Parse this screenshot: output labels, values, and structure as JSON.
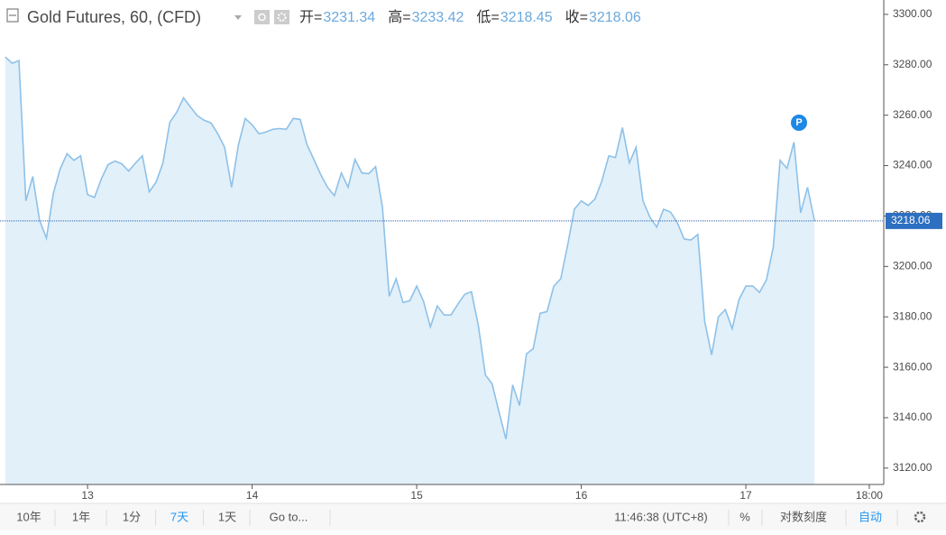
{
  "chart_data": {
    "type": "line",
    "title": "Gold Futures, 60, (CFD)",
    "legend_values": [
      {
        "label": "开=",
        "value": 3231.34
      },
      {
        "label": "高=",
        "value": 3233.42
      },
      {
        "label": "低=",
        "value": 3218.45
      },
      {
        "label": "收=",
        "value": 3218.06
      }
    ],
    "last_price_label": 3218.06,
    "color": "#8ec1e8",
    "fill": "#e2f0fa",
    "x": [
      12.5,
      12.542,
      12.583,
      12.625,
      12.667,
      12.708,
      12.75,
      12.792,
      12.833,
      12.875,
      12.917,
      12.958,
      13,
      13.042,
      13.083,
      13.125,
      13.167,
      13.208,
      13.25,
      13.292,
      13.333,
      13.375,
      13.417,
      13.458,
      13.5,
      13.542,
      13.583,
      13.625,
      13.667,
      13.708,
      13.75,
      13.792,
      13.833,
      13.875,
      13.917,
      13.958,
      14,
      14.042,
      14.083,
      14.125,
      14.167,
      14.208,
      14.25,
      14.292,
      14.333,
      14.375,
      14.417,
      14.458,
      14.5,
      14.542,
      14.583,
      14.625,
      14.667,
      14.708,
      14.75,
      14.792,
      14.833,
      14.875,
      14.917,
      14.958,
      15,
      15.042,
      15.083,
      15.125,
      15.167,
      15.208,
      15.25,
      15.292,
      15.333,
      15.375,
      15.417,
      15.458,
      15.5,
      15.542,
      15.583,
      15.625,
      15.667,
      15.708,
      15.75,
      15.792,
      15.833,
      15.875,
      15.917,
      15.958,
      16,
      16.042,
      16.083,
      16.125,
      16.167,
      16.208,
      16.25,
      16.292,
      16.333,
      16.375,
      16.417,
      16.458,
      16.5,
      16.542,
      16.583,
      16.625,
      16.667,
      16.708,
      16.75,
      16.792,
      16.833,
      16.875,
      16.917,
      16.958,
      17,
      17.042,
      17.083,
      17.125,
      17.167,
      17.208,
      17.25,
      17.292,
      17.333,
      17.375,
      17.417
    ],
    "values": [
      3283.1,
      3280.6,
      3281.7,
      3226.0,
      3235.7,
      3218.4,
      3211.2,
      3228.9,
      3238.6,
      3244.7,
      3242.1,
      3243.9,
      3228.5,
      3227.4,
      3234.6,
      3240.4,
      3241.8,
      3240.7,
      3237.8,
      3241.1,
      3243.9,
      3229.6,
      3233.5,
      3241.1,
      3257.2,
      3261.2,
      3266.9,
      3263.3,
      3259.8,
      3258.0,
      3256.9,
      3252.6,
      3247.2,
      3231.4,
      3248.3,
      3258.7,
      3256.2,
      3252.6,
      3253.3,
      3254.4,
      3254.7,
      3254.4,
      3258.7,
      3258.3,
      3248.3,
      3242.5,
      3236.4,
      3231.4,
      3228.1,
      3237.1,
      3231.4,
      3242.5,
      3237.1,
      3236.8,
      3239.6,
      3223.5,
      3188.2,
      3195.1,
      3185.7,
      3186.4,
      3192.2,
      3186.1,
      3176.0,
      3184.3,
      3180.7,
      3180.7,
      3185.0,
      3189.0,
      3190.0,
      3176.4,
      3157.0,
      3153.4,
      3142.3,
      3131.5,
      3153.0,
      3144.8,
      3165.3,
      3167.4,
      3181.4,
      3182.1,
      3192.2,
      3195.1,
      3208.4,
      3222.7,
      3226.0,
      3224.2,
      3226.7,
      3233.9,
      3243.9,
      3243.2,
      3255.1,
      3241.1,
      3247.2,
      3226.0,
      3219.5,
      3215.6,
      3222.7,
      3221.6,
      3217.4,
      3210.9,
      3210.5,
      3212.7,
      3178.2,
      3164.9,
      3180.0,
      3182.9,
      3175.3,
      3186.8,
      3192.2,
      3192.2,
      3189.7,
      3194.7,
      3207.7,
      3242.1,
      3238.9,
      3249.3,
      3221.3,
      3231.4,
      3218.06
    ],
    "xlim": [
      12.468,
      17.838
    ],
    "xticks": [
      13,
      14,
      15,
      16,
      17,
      {
        "value": 17.75,
        "label": "18:00"
      }
    ],
    "ylim": [
      3113.5,
      3305.7
    ],
    "yticks": [
      {
        "value": 3120,
        "label": "3120.00"
      },
      {
        "value": 3140,
        "label": "3140.00"
      },
      {
        "value": 3160,
        "label": "3160.00"
      },
      {
        "value": 3180,
        "label": "3180.00"
      },
      {
        "value": 3200,
        "label": "3200.00"
      },
      {
        "value": 3220,
        "label": "3220.00"
      },
      {
        "value": 3240,
        "label": "3240.00"
      },
      {
        "value": 3260,
        "label": "3260.00"
      },
      {
        "value": 3280,
        "label": "3280.00"
      },
      {
        "value": 3300,
        "label": "3300.00"
      }
    ]
  },
  "toolbar": {
    "ranges": [
      "10年",
      "1年",
      "1分",
      "7天",
      "1天"
    ],
    "goto": "Go to...",
    "clock": "11:46:38 (UTC+8)",
    "percent": "%",
    "log": "对数刻度",
    "auto": "自动"
  }
}
